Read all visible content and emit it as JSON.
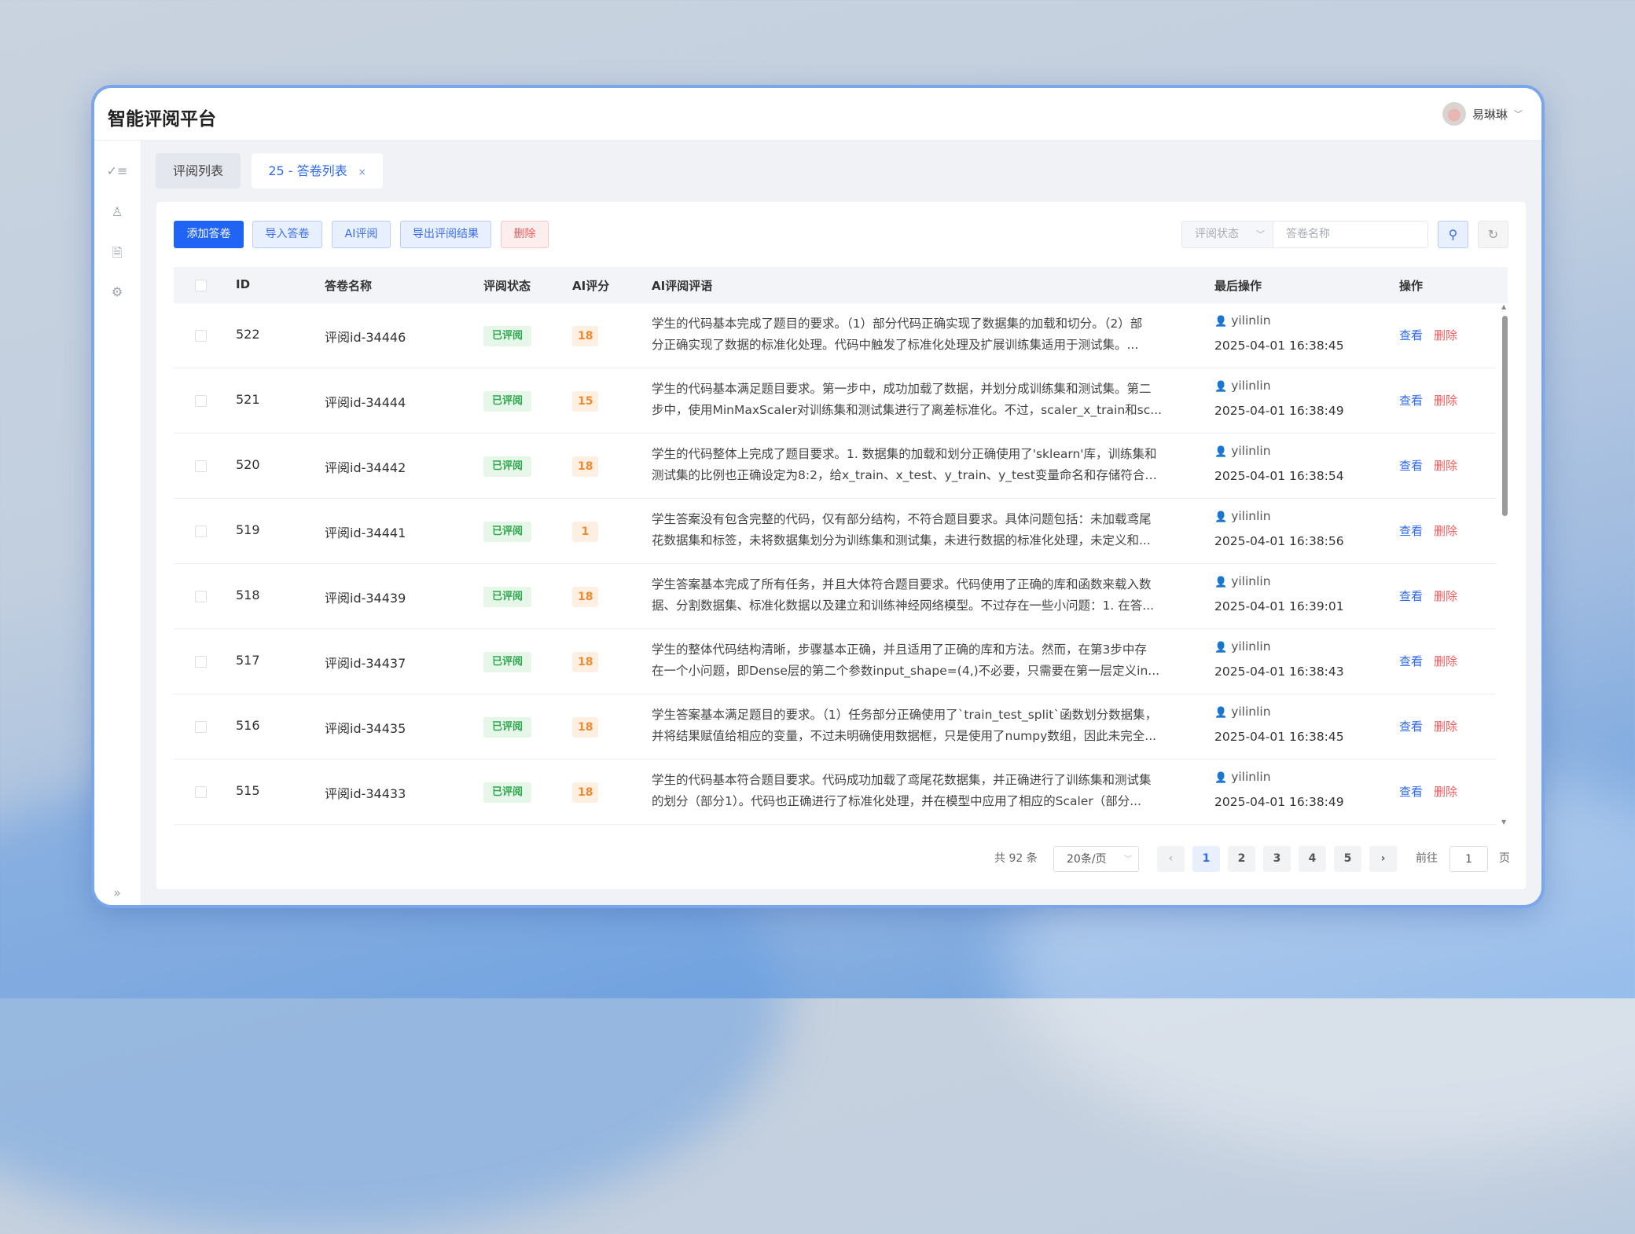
{
  "app": {
    "title": "智能评阅平台",
    "user_name": "易琳琳"
  },
  "sidebar": {
    "icons": [
      "checklist-icon",
      "user-icon",
      "document-check-icon",
      "gear-icon"
    ],
    "expand_icon": "double-chevron-right-icon"
  },
  "tabs": [
    {
      "label": "评阅列表",
      "active": false
    },
    {
      "label": "25 - 答卷列表",
      "active": true,
      "close": "×"
    }
  ],
  "toolbar": {
    "add": "添加答卷",
    "import": "导入答卷",
    "ai_review": "AI评阅",
    "export": "导出评阅结果",
    "delete": "删除"
  },
  "filters": {
    "status_placeholder": "评阅状态",
    "name_placeholder": "答卷名称"
  },
  "table": {
    "headers": {
      "id": "ID",
      "name": "答卷名称",
      "status": "评阅状态",
      "score": "AI评分",
      "comment": "AI评阅评语",
      "last_op": "最后操作",
      "ops": "操作"
    },
    "action_view": "查看",
    "action_delete": "删除",
    "rows": [
      {
        "id": "522",
        "name": "评阅id-34446",
        "status": "已评阅",
        "score": "18",
        "comment": [
          "学生的代码基本完成了题目的要求。（1）部分代码正确实现了数据集的加载和切分。（2）部",
          "分正确实现了数据的标准化处理。代码中触发了标准化处理及扩展训练集适用于测试集。..."
        ],
        "user": "yilinlin",
        "time": "2025-04-01 16:38:45"
      },
      {
        "id": "521",
        "name": "评阅id-34444",
        "status": "已评阅",
        "score": "15",
        "comment": [
          "学生的代码基本满足题目要求。第一步中，成功加载了数据，并划分成训练集和测试集。第二",
          "步中，使用MinMaxScaler对训练集和测试集进行了离差标准化。不过，scaler_x_train和sc..."
        ],
        "user": "yilinlin",
        "time": "2025-04-01 16:38:49"
      },
      {
        "id": "520",
        "name": "评阅id-34442",
        "status": "已评阅",
        "score": "18",
        "comment": [
          "学生的代码整体上完成了题目要求。1. 数据集的加载和划分正确使用了'sklearn'库，训练集和",
          "测试集的比例也正确设定为8:2，给x_train、x_test、y_train、y_test变量命名和存储符合要..."
        ],
        "user": "yilinlin",
        "time": "2025-04-01 16:38:54"
      },
      {
        "id": "519",
        "name": "评阅id-34441",
        "status": "已评阅",
        "score": "1",
        "comment": [
          "学生答案没有包含完整的代码，仅有部分结构，不符合题目要求。具体问题包括：未加载鸢尾",
          "花数据集和标签，未将数据集划分为训练集和测试集，未进行数据的标准化处理，未定义和..."
        ],
        "user": "yilinlin",
        "time": "2025-04-01 16:38:56"
      },
      {
        "id": "518",
        "name": "评阅id-34439",
        "status": "已评阅",
        "score": "18",
        "comment": [
          "学生答案基本完成了所有任务，并且大体符合题目要求。代码使用了正确的库和函数来载入数",
          "据、分割数据集、标准化数据以及建立和训练神经网络模型。不过存在一些小问题：1. 在答..."
        ],
        "user": "yilinlin",
        "time": "2025-04-01 16:39:01"
      },
      {
        "id": "517",
        "name": "评阅id-34437",
        "status": "已评阅",
        "score": "18",
        "comment": [
          "学生的整体代码结构清晰，步骤基本正确，并且适用了正确的库和方法。然而，在第3步中存",
          "在一个小问题，即Dense层的第二个参数input_shape=(4,)不必要，只需要在第一层定义in..."
        ],
        "user": "yilinlin",
        "time": "2025-04-01 16:38:43"
      },
      {
        "id": "516",
        "name": "评阅id-34435",
        "status": "已评阅",
        "score": "18",
        "comment": [
          "学生答案基本满足题目的要求。（1）任务部分正确使用了`train_test_split`函数划分数据集，",
          "并将结果赋值给相应的变量，不过未明确使用数据框，只是使用了numpy数组，因此未完全..."
        ],
        "user": "yilinlin",
        "time": "2025-04-01 16:38:45"
      },
      {
        "id": "515",
        "name": "评阅id-34433",
        "status": "已评阅",
        "score": "18",
        "comment": [
          "学生的代码基本符合题目要求。代码成功加载了鸢尾花数据集，并正确进行了训练集和测试集",
          "的划分（部分1）。代码也正确进行了标准化处理，并在模型中应用了相应的Scaler（部分..."
        ],
        "user": "yilinlin",
        "time": "2025-04-01 16:38:49"
      }
    ]
  },
  "pagination": {
    "total": "共 92 条",
    "page_size": "20条/页",
    "pages": [
      "1",
      "2",
      "3",
      "4",
      "5"
    ],
    "current": "1",
    "goto_label": "前往",
    "goto_value": "1",
    "page_suffix": "页"
  },
  "colors": {
    "primary": "#1f64f5",
    "danger": "#ef5a5a",
    "success": "#2fa84f",
    "score": "#f2892e"
  }
}
